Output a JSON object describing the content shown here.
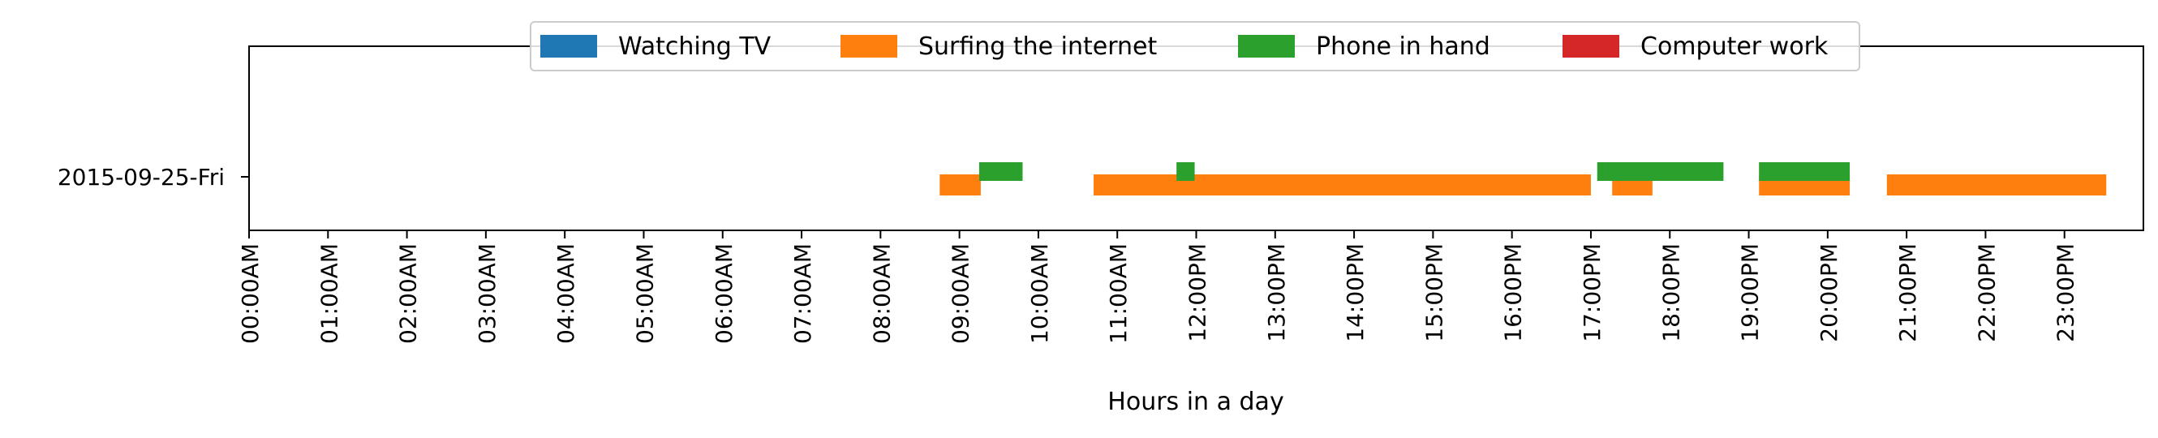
{
  "chart_data": {
    "type": "bar",
    "title": "",
    "xlabel": "Hours in a day",
    "ylabel": "",
    "xlim": [
      0,
      24
    ],
    "grid": false,
    "legend_placement": "top-center",
    "categories": [
      "2015-09-25-Fri"
    ],
    "x_ticks": [
      {
        "value": 0,
        "label": "00:00AM"
      },
      {
        "value": 1,
        "label": "01:00AM"
      },
      {
        "value": 2,
        "label": "02:00AM"
      },
      {
        "value": 3,
        "label": "03:00AM"
      },
      {
        "value": 4,
        "label": "04:00AM"
      },
      {
        "value": 5,
        "label": "05:00AM"
      },
      {
        "value": 6,
        "label": "06:00AM"
      },
      {
        "value": 7,
        "label": "07:00AM"
      },
      {
        "value": 8,
        "label": "08:00AM"
      },
      {
        "value": 9,
        "label": "09:00AM"
      },
      {
        "value": 10,
        "label": "10:00AM"
      },
      {
        "value": 11,
        "label": "11:00AM"
      },
      {
        "value": 12,
        "label": "12:00PM"
      },
      {
        "value": 13,
        "label": "13:00PM"
      },
      {
        "value": 14,
        "label": "14:00PM"
      },
      {
        "value": 15,
        "label": "15:00PM"
      },
      {
        "value": 16,
        "label": "16:00PM"
      },
      {
        "value": 17,
        "label": "17:00PM"
      },
      {
        "value": 18,
        "label": "18:00PM"
      },
      {
        "value": 19,
        "label": "19:00PM"
      },
      {
        "value": 20,
        "label": "20:00PM"
      },
      {
        "value": 21,
        "label": "21:00PM"
      },
      {
        "value": 22,
        "label": "22:00PM"
      },
      {
        "value": 23,
        "label": "23:00PM"
      }
    ],
    "series": [
      {
        "name": "Watching TV",
        "color": "#1f77b4",
        "intervals": []
      },
      {
        "name": "Surfing the internet",
        "color": "#ff7f0e",
        "intervals": [
          {
            "start": 8.75,
            "end": 9.27
          },
          {
            "start": 10.7,
            "end": 17.0
          },
          {
            "start": 17.27,
            "end": 17.78
          },
          {
            "start": 19.13,
            "end": 20.28
          },
          {
            "start": 20.75,
            "end": 23.53
          }
        ]
      },
      {
        "name": "Phone in hand",
        "color": "#2ca02c",
        "intervals": [
          {
            "start": 9.25,
            "end": 9.8
          },
          {
            "start": 11.75,
            "end": 11.98
          },
          {
            "start": 17.08,
            "end": 18.68
          },
          {
            "start": 19.13,
            "end": 20.28
          }
        ]
      },
      {
        "name": "Computer work",
        "color": "#d62728",
        "intervals": []
      }
    ]
  }
}
